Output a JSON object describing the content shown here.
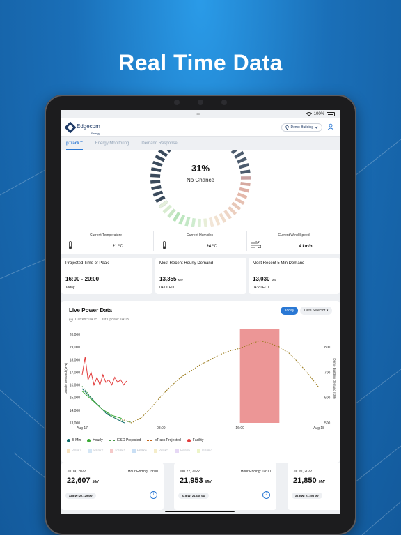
{
  "headline": "Real Time Data",
  "status": {
    "dots": "•••",
    "battery": "100%"
  },
  "app": {
    "logo_name": "Edgecom",
    "logo_sub": "Energy",
    "building": "Demo Building"
  },
  "tabs": [
    {
      "label": "pTrack",
      "sup": "TM"
    },
    {
      "label": "Energy Monitoring"
    },
    {
      "label": "Demand Response"
    }
  ],
  "gauge": {
    "percent": "31%",
    "label": "No Chance",
    "value": 0.31
  },
  "weather": [
    {
      "label": "Current Temperature",
      "value": "21 °C",
      "icon": "thermometer-icon"
    },
    {
      "label": "Current Humidex",
      "value": "24 °C",
      "icon": "thermometer-icon"
    },
    {
      "label": "Current Wind Speed",
      "value": "4 km/h",
      "icon": "wind-icon"
    }
  ],
  "metrics": [
    {
      "title": "Projected Time of Peak",
      "value": "16:00 - 20:00",
      "unit": "",
      "sub": "Today"
    },
    {
      "title": "Most Recent Hourly Demand",
      "value": "13,355",
      "unit": "MW",
      "sub": "04:00 EDT"
    },
    {
      "title": "Most Recent 5 Min Demand",
      "value": "13,030",
      "unit": "MW",
      "sub": "04:20 EDT"
    }
  ],
  "live_power": {
    "title": "Live Power Data",
    "current": "Current: 04:15",
    "last_update": "Last Update: 04:15",
    "today_button": "Today",
    "date_selector": "Date Selector"
  },
  "chart_data": {
    "type": "line",
    "title": "",
    "xlabel": "",
    "ylabel": "Ontario Demand (MW)",
    "y2label": "Demo Building Demand (kW)",
    "x_ticks": [
      "Aug 17",
      "08:00",
      "16:00",
      "Aug 18"
    ],
    "xlim_hours": [
      0,
      24
    ],
    "ylim": [
      13000,
      20000
    ],
    "y_ticks": [
      "20,000",
      "19,000",
      "18,000",
      "17,000",
      "16,000",
      "15,000",
      "14,000",
      "13,000"
    ],
    "y2lim": [
      500,
      850
    ],
    "y2_ticks": [
      "800",
      "700",
      "600",
      "500"
    ],
    "highlight_hours": [
      16,
      20
    ],
    "series": [
      {
        "name": "5 Min",
        "color": "#0e6b6b",
        "style": "solid",
        "x": [
          0,
          0.5,
          1,
          1.5,
          2,
          2.5,
          3,
          3.5,
          4,
          4.3
        ],
        "y": [
          15700,
          15300,
          14900,
          14500,
          14100,
          13700,
          13500,
          13300,
          13100,
          13000
        ]
      },
      {
        "name": "Hourly",
        "color": "#3aaa35",
        "style": "solid",
        "x": [
          0,
          1,
          2,
          3,
          4
        ],
        "y": [
          15500,
          14800,
          14100,
          13600,
          13355
        ]
      },
      {
        "name": "IESO Projected",
        "color": "#4c9a4c",
        "style": "dashed",
        "x": [
          0,
          1,
          2,
          3,
          4,
          5
        ],
        "y": [
          15900,
          14900,
          14100,
          13500,
          13200,
          13050
        ]
      },
      {
        "name": "pTrack Projected",
        "color": "#9a7a1a",
        "style": "dashed",
        "x": [
          4,
          5,
          6,
          7,
          8,
          9,
          10,
          11,
          12,
          13,
          14,
          15,
          16,
          17,
          18,
          19,
          20,
          21,
          22,
          23,
          24
        ],
        "y": [
          13300,
          13000,
          13400,
          14200,
          15100,
          15900,
          16600,
          17100,
          17600,
          18000,
          18400,
          18700,
          18900,
          19200,
          19500,
          19300,
          19000,
          18500,
          17700,
          16800,
          15800
        ]
      },
      {
        "name": "Facility",
        "color": "#e23b3b",
        "style": "solid",
        "axis": "right",
        "x": [
          0,
          0.3,
          0.6,
          0.9,
          1.2,
          1.5,
          1.8,
          2.1,
          2.4,
          2.7,
          3.0,
          3.3,
          3.6,
          3.9,
          4.2,
          4.5
        ],
        "y": [
          690,
          760,
          670,
          700,
          650,
          680,
          650,
          690,
          660,
          670,
          650,
          680,
          660,
          670,
          650,
          665
        ]
      }
    ]
  },
  "legend": [
    "5 Min",
    "Hourly",
    "IESO Projected",
    "pTrack Projected",
    "Facility"
  ],
  "peak_labels": [
    "Peak1",
    "Peak2",
    "Peak3",
    "Peak4",
    "Peak5",
    "Peak6",
    "Peak7"
  ],
  "peak_colors": [
    "#f0c070",
    "#a0c8e8",
    "#e88888",
    "#88b8e8",
    "#e8d888",
    "#c8a8e8",
    "#d8e888"
  ],
  "peaks": [
    {
      "date": "Jul 19, 2022",
      "hour": "Hour Ending: 19:00",
      "value": "22,607",
      "unit": "MW",
      "aqew_label": "AQEW:",
      "aqew": "22,129",
      "aqew_unit": "MW",
      "rank": "1"
    },
    {
      "date": "Jun 22, 2022",
      "hour": "Hour Ending: 18:00",
      "value": "21,953",
      "unit": "MW",
      "aqew_label": "AQEW:",
      "aqew": "21,340",
      "aqew_unit": "MW",
      "rank": "2"
    },
    {
      "date": "Jul 20, 2022",
      "hour": "",
      "value": "21,850",
      "unit": "MW",
      "aqew_label": "AQEW:",
      "aqew": "21,393",
      "aqew_unit": "MW",
      "rank": ""
    }
  ]
}
